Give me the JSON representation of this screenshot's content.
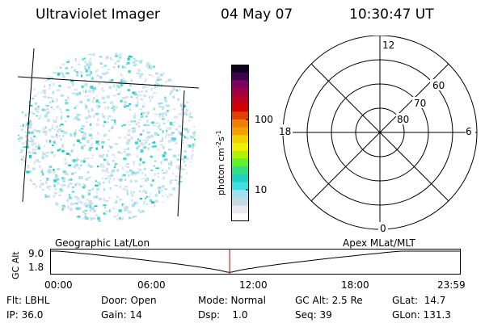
{
  "header": {
    "instrument": "Ultraviolet Imager",
    "date": "04 May 07",
    "time": "10:30:47 UT"
  },
  "colorbar": {
    "label": "photon cm⁻²s⁻¹",
    "label_parts": [
      "photon cm",
      "-2",
      "s",
      "-1"
    ],
    "ticks": [
      "100",
      "10"
    ],
    "tick_values": [
      100,
      10
    ],
    "scale": "log",
    "colors": [
      "#ffffff",
      "#e8e8f0",
      "#c8d8e0",
      "#a0e0f0",
      "#40e0e0",
      "#20d0c0",
      "#30e080",
      "#60f030",
      "#b0f000",
      "#f0f000",
      "#f0d000",
      "#f0a000",
      "#f08000",
      "#e04000",
      "#d00000",
      "#c00020",
      "#a00040",
      "#800060",
      "#400050",
      "#100020"
    ]
  },
  "polar_plot": {
    "ring_labels": [
      "60",
      "70",
      "80"
    ],
    "mlt_labels": {
      "top": "12",
      "bottom": "0",
      "left": "18",
      "right": "6"
    }
  },
  "timeline": {
    "y_axis_label": "GC Alt",
    "y_ticks": [
      "9.0",
      "1.8"
    ],
    "left_label": "Geographic Lat/Lon",
    "right_label": "Apex MLat/MLT",
    "x_ticks": [
      "00:00",
      "06:00",
      "12:00",
      "18:00",
      "23:59"
    ],
    "current_time_hours": 10.513,
    "marker_color": "#cc0000"
  },
  "info": {
    "row1": [
      {
        "label": "Flt: LBHL"
      },
      {
        "label": "Door: Open"
      },
      {
        "label": "Mode: Normal"
      },
      {
        "label": "GC Alt: 2.5 Re"
      },
      {
        "label": "GLat:  14.7"
      }
    ],
    "row2": [
      {
        "label": "IP: 36.0"
      },
      {
        "label": "Gain: 14"
      },
      {
        "label": "Dsp:    1.0"
      },
      {
        "label": "Seq: 39"
      },
      {
        "label": "GLon: 131.3"
      }
    ]
  }
}
